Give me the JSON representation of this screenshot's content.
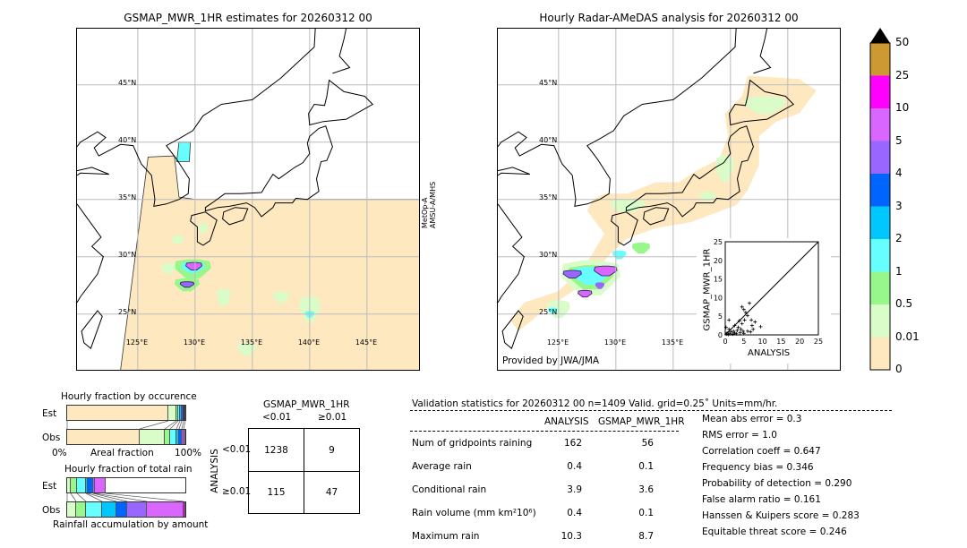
{
  "left_map": {
    "title": "GSMAP_MWR_1HR estimates for 20260312 00",
    "satellite_label": [
      "MetOp-A",
      "AMSU-A/MHS"
    ],
    "lat_labels": [
      "45°N",
      "40°N",
      "35°N",
      "30°N",
      "25°N"
    ],
    "lon_labels": [
      "125°E",
      "130°E",
      "135°E",
      "140°E",
      "145°E"
    ]
  },
  "right_map": {
    "title": "Hourly Radar-AMeDAS analysis for 20260312 00",
    "lat_labels": [
      "45°N",
      "40°N",
      "35°N",
      "30°N",
      "25°N"
    ],
    "lon_labels": [
      "125°E",
      "130°E",
      "135°E"
    ],
    "credit": "Provided by JWA/JMA"
  },
  "colorbar": {
    "ticks": [
      "0",
      "0.01",
      "0.5",
      "1",
      "2",
      "3",
      "4",
      "5",
      "10",
      "25",
      "50"
    ],
    "colors": [
      "#fee8c0",
      "#d9fcc8",
      "#98f78a",
      "#66fefe",
      "#00c8ff",
      "#0064ff",
      "#9966ff",
      "#d966ff",
      "#ff00ff",
      "#cc9933"
    ],
    "extend_color": "#000000"
  },
  "scatter": {
    "xlabel": "ANALYSIS",
    "ylabel": "GSMAP_MWR_1HR",
    "xticks": [
      "0",
      "5",
      "10",
      "15",
      "20",
      "25"
    ],
    "yticks": [
      "0",
      "5",
      "10",
      "15",
      "20",
      "25"
    ],
    "range": [
      0,
      25
    ],
    "points": [
      [
        0.3,
        0.2
      ],
      [
        0.5,
        0.5
      ],
      [
        0.8,
        0.1
      ],
      [
        1,
        1.5
      ],
      [
        1.2,
        0.3
      ],
      [
        1.5,
        0.8
      ],
      [
        2,
        0.2
      ],
      [
        2.2,
        1
      ],
      [
        2.5,
        0.5
      ],
      [
        3,
        0.3
      ],
      [
        3.2,
        1.2
      ],
      [
        3.5,
        2
      ],
      [
        4,
        0.6
      ],
      [
        4.2,
        1.5
      ],
      [
        4.5,
        3
      ],
      [
        4.8,
        1
      ],
      [
        5,
        0.4
      ],
      [
        5.2,
        4
      ],
      [
        5,
        6.8
      ],
      [
        5.5,
        6
      ],
      [
        6,
        5.2
      ],
      [
        6.5,
        8.5
      ],
      [
        4.5,
        7.5
      ],
      [
        7,
        4
      ],
      [
        7.2,
        2.5
      ],
      [
        7.5,
        1.5
      ],
      [
        8,
        3.5
      ],
      [
        9.5,
        2.2
      ],
      [
        1,
        4
      ],
      [
        2.5,
        2.5
      ],
      [
        0.2,
        2
      ],
      [
        6,
        1
      ],
      [
        6.8,
        0.8
      ],
      [
        3.8,
        3.8
      ]
    ]
  },
  "occurrence_chart": {
    "title": "Hourly fraction by occurence",
    "xlabel": "Areal fraction",
    "x_left": "0%",
    "x_right": "100%",
    "rows": [
      "Est",
      "Obs"
    ],
    "est_fractions": [
      0.856,
      0.068,
      0.016,
      0.015,
      0.015,
      0.015,
      0.015
    ],
    "obs_fractions": [
      0.614,
      0.212,
      0.045,
      0.053,
      0.023,
      0.023,
      0.015,
      0.015
    ]
  },
  "rain_chart": {
    "title": "Hourly fraction of total rain",
    "xlabel": "Rainfall accumulation by amount",
    "rows": [
      "Est",
      "Obs"
    ],
    "est_fractions": [
      0.03,
      0.053,
      0.076,
      0.015,
      0.045,
      0.015,
      0.091
    ],
    "obs_fractions": [
      0.076,
      0.083,
      0.136,
      0.121,
      0.091,
      0.167,
      0.311,
      0.015
    ]
  },
  "contingency": {
    "col_header": "GSMAP_MWR_1HR",
    "col_labels": [
      "<0.01",
      "≥0.01"
    ],
    "row_header": "ANALYSIS",
    "row_labels": [
      "<0.01",
      "≥0.01"
    ],
    "cells": [
      [
        "1238",
        "9"
      ],
      [
        "115",
        "47"
      ]
    ]
  },
  "stats": {
    "header": "Validation statistics for 20260312 00  n=1409 Valid. grid=0.25˚ Units=mm/hr.",
    "col_analysis": "ANALYSIS",
    "col_gsmap": "GSMAP_MWR_1HR",
    "rows": [
      {
        "label": "Num of gridpoints raining",
        "analysis": "162",
        "gsmap": "56"
      },
      {
        "label": "Average rain",
        "analysis": "0.4",
        "gsmap": "0.1"
      },
      {
        "label": "Conditional rain",
        "analysis": "3.9",
        "gsmap": "3.6"
      },
      {
        "label": "Rain volume (mm km²10⁶)",
        "analysis": "0.4",
        "gsmap": "0.1"
      },
      {
        "label": "Maximum rain",
        "analysis": "10.3",
        "gsmap": "8.7"
      }
    ],
    "scores": [
      "Mean abs error =    0.3",
      "RMS error =    1.0",
      "Correlation coeff =  0.647",
      "Frequency bias =  0.346",
      "Probability of detection =  0.290",
      "False alarm ratio =  0.161",
      "Hanssen & Kuipers score =  0.283",
      "Equitable threat score =  0.246"
    ]
  }
}
